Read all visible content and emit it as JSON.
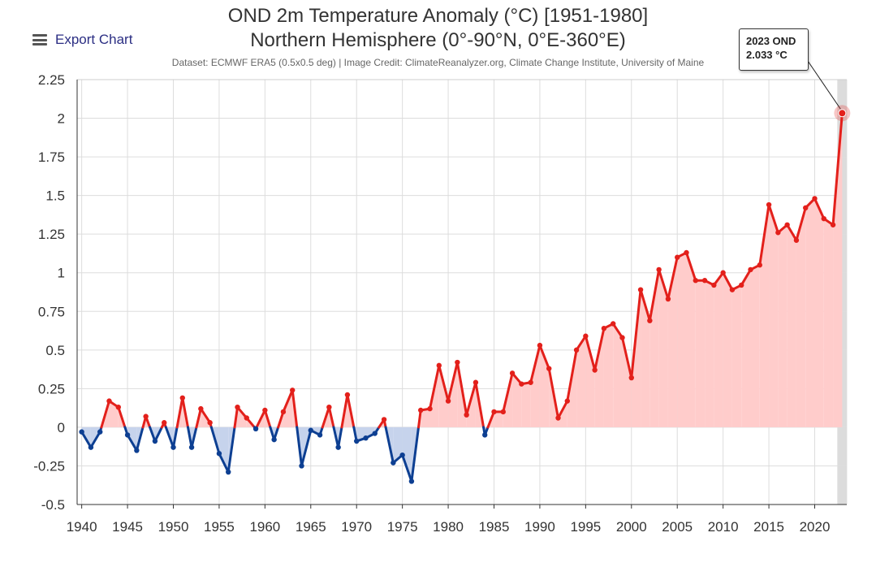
{
  "export_label": "Export Chart",
  "chart_data": {
    "type": "area",
    "title": "OND 2m Temperature Anomaly (°C) [1951-1980]",
    "subtitle": "Northern Hemisphere (0°-90°N, 0°E-360°E)",
    "credit": "Dataset: ECMWF ERA5 (0.5x0.5 deg) | Image Credit: ClimateReanalyzer.org, Climate Change Institute, University of Maine",
    "xlabel": "",
    "ylabel": "",
    "xlim": [
      1939.5,
      2023.5
    ],
    "ylim": [
      -0.5,
      2.25
    ],
    "grid": true,
    "legend": "none",
    "x_ticks": [
      1940,
      1945,
      1950,
      1955,
      1960,
      1965,
      1970,
      1975,
      1980,
      1985,
      1990,
      1995,
      2000,
      2005,
      2010,
      2015,
      2020
    ],
    "y_ticks": [
      2.25,
      2,
      1.75,
      1.5,
      1.25,
      1,
      0.75,
      0.5,
      0.25,
      0,
      -0.25,
      -0.5
    ],
    "y_tick_labels": [
      "2.25",
      "2",
      "1.75",
      "1.5",
      "1.25",
      "1",
      "0.75",
      "0.5",
      "0.25",
      "0",
      "-0.25",
      "-0.5"
    ],
    "colors": {
      "positive_line": "#e3201b",
      "positive_fill": "#ffcccb",
      "negative_line": "#0d3f92",
      "negative_fill": "#c6d3ec",
      "grid": "#dddddd",
      "highlight_band": "#dcdcdc"
    },
    "series": [
      {
        "name": "OND 2m Temperature Anomaly",
        "start_year": 1940,
        "values": [
          -0.03,
          -0.13,
          -0.03,
          0.17,
          0.13,
          -0.05,
          -0.15,
          0.07,
          -0.09,
          0.03,
          -0.13,
          0.19,
          -0.13,
          0.12,
          0.03,
          -0.17,
          -0.29,
          0.13,
          0.06,
          -0.01,
          0.11,
          -0.08,
          0.1,
          0.24,
          -0.25,
          -0.02,
          -0.05,
          0.13,
          -0.13,
          0.21,
          -0.09,
          -0.07,
          -0.04,
          0.05,
          -0.23,
          -0.18,
          -0.35,
          0.11,
          0.12,
          0.4,
          0.17,
          0.42,
          0.08,
          0.29,
          -0.05,
          0.1,
          0.1,
          0.35,
          0.28,
          0.29,
          0.53,
          0.38,
          0.06,
          0.17,
          0.5,
          0.59,
          0.37,
          0.64,
          0.67,
          0.58,
          0.32,
          0.89,
          0.69,
          1.02,
          0.83,
          1.1,
          1.13,
          0.95,
          0.95,
          0.92,
          1.0,
          0.89,
          0.92,
          1.02,
          1.05,
          1.44,
          1.26,
          1.31,
          1.21,
          1.42,
          1.48,
          1.35,
          1.31,
          2.033
        ]
      }
    ],
    "highlight": {
      "year": 2023,
      "value": 2.033,
      "label_line1": "2023 OND",
      "label_line2": "2.033 °C"
    }
  }
}
